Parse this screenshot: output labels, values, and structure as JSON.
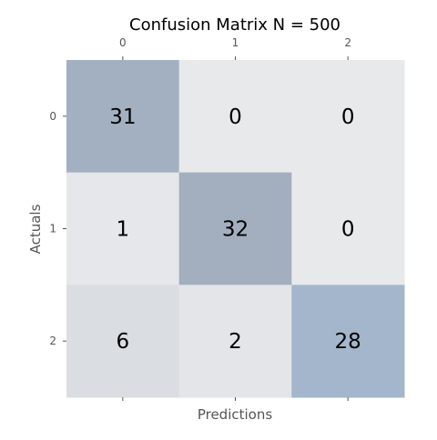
{
  "chart_data": {
    "type": "heatmap",
    "title": "Confusion Matrix N = 500",
    "xlabel": "Predictions",
    "ylabel": "Actuals",
    "x_categories": [
      "0",
      "1",
      "2"
    ],
    "y_categories": [
      "0",
      "1",
      "2"
    ],
    "values": [
      [
        31,
        0,
        0
      ],
      [
        1,
        32,
        0
      ],
      [
        6,
        2,
        28
      ]
    ],
    "x_tick_labels_position": "top",
    "y_tick_labels_position": "left",
    "colormap": {
      "low": "#e8e9eb",
      "high": "#a3b6cc",
      "diagonal": [
        "#a3b0c2",
        "#a3aebf",
        "#a3b6cc"
      ]
    },
    "grid": false
  }
}
